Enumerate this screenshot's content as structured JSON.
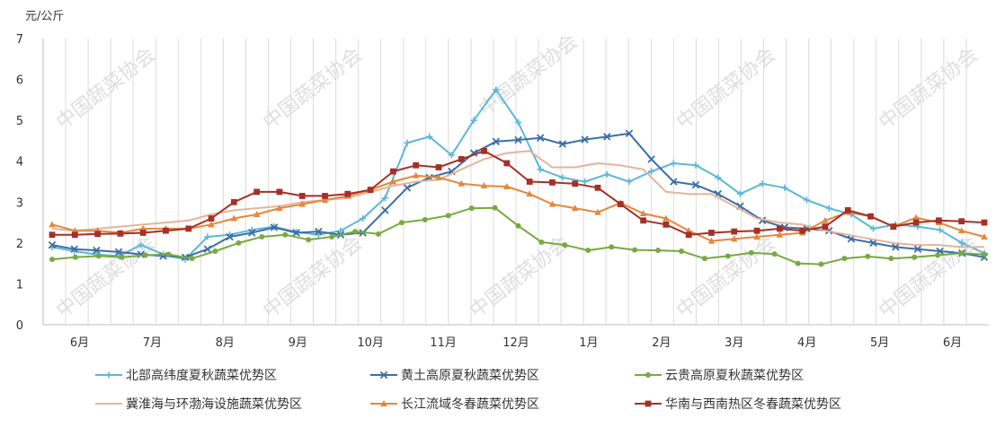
{
  "chart_data": {
    "type": "line",
    "ylabel": "元/公斤",
    "ylim": [
      0,
      7
    ],
    "yticks": [
      0,
      1,
      2,
      3,
      4,
      5,
      6,
      7
    ],
    "grid": "vertical",
    "legend_position": "bottom",
    "months": [
      "6月",
      "7月",
      "8月",
      "9月",
      "10月",
      "11月",
      "12月",
      "1月",
      "2月",
      "3月",
      "4月",
      "5月",
      "6月"
    ],
    "watermark": "中国蔬菜协会",
    "series": [
      {
        "name": "北部高纬度夏秋蔬菜优势区",
        "color": "#5bb8d8",
        "marker": "plus",
        "values": [
          1.9,
          1.8,
          1.72,
          1.68,
          1.95,
          1.72,
          1.6,
          2.15,
          2.2,
          2.32,
          2.4,
          2.27,
          2.2,
          2.3,
          2.6,
          3.1,
          4.45,
          4.6,
          4.15,
          5.0,
          5.75,
          4.95,
          3.8,
          3.6,
          3.5,
          3.68,
          3.5,
          3.75,
          3.95,
          3.9,
          3.6,
          3.2,
          3.45,
          3.35,
          3.05,
          2.85,
          2.7,
          2.35,
          2.45,
          2.4,
          2.32,
          2.0,
          1.75
        ]
      },
      {
        "name": "黄土高原夏秋蔬菜优势区",
        "color": "#3c6fa5",
        "marker": "x",
        "values": [
          1.95,
          1.85,
          1.82,
          1.78,
          1.72,
          1.68,
          1.65,
          1.85,
          2.15,
          2.25,
          2.38,
          2.25,
          2.28,
          2.2,
          2.25,
          2.8,
          3.35,
          3.6,
          3.75,
          4.2,
          4.48,
          4.52,
          4.57,
          4.42,
          4.53,
          4.6,
          4.68,
          4.05,
          3.5,
          3.42,
          3.2,
          2.9,
          2.55,
          2.38,
          2.35,
          2.3,
          2.1,
          2.0,
          1.9,
          1.85,
          1.8,
          1.75,
          1.65
        ]
      },
      {
        "name": "云贵高原夏秋蔬菜优势区",
        "color": "#77aa40",
        "marker": "circle",
        "values": [
          1.6,
          1.65,
          1.68,
          1.65,
          1.7,
          1.72,
          1.62,
          1.8,
          2.0,
          2.15,
          2.2,
          2.08,
          2.15,
          2.28,
          2.22,
          2.5,
          2.57,
          2.67,
          2.85,
          2.86,
          2.42,
          2.02,
          1.95,
          1.82,
          1.9,
          1.83,
          1.82,
          1.8,
          1.62,
          1.68,
          1.76,
          1.73,
          1.5,
          1.48,
          1.62,
          1.67,
          1.62,
          1.65,
          1.7,
          1.75,
          1.72
        ]
      },
      {
        "name": "冀淮海与环渤海设施蔬菜优势区",
        "color": "#e6b49a",
        "marker": "none",
        "values": [
          2.35,
          2.3,
          2.35,
          2.4,
          2.45,
          2.5,
          2.55,
          2.7,
          2.8,
          2.85,
          2.9,
          3.0,
          3.05,
          3.1,
          3.25,
          3.4,
          3.5,
          3.55,
          3.8,
          4.05,
          4.2,
          4.25,
          3.85,
          3.85,
          3.95,
          3.9,
          3.8,
          3.25,
          3.2,
          3.2,
          2.9,
          2.6,
          2.5,
          2.45,
          2.3,
          2.2,
          2.1,
          2.0,
          1.95,
          1.95,
          1.9,
          1.9
        ]
      },
      {
        "name": "长江流域冬春蔬菜优势区",
        "color": "#e3883d",
        "marker": "triangle",
        "values": [
          2.45,
          2.3,
          2.3,
          2.25,
          2.35,
          2.35,
          2.35,
          2.45,
          2.6,
          2.7,
          2.85,
          2.95,
          3.05,
          3.15,
          3.3,
          3.5,
          3.65,
          3.6,
          3.45,
          3.4,
          3.38,
          3.2,
          2.95,
          2.85,
          2.75,
          2.98,
          2.72,
          2.6,
          2.3,
          2.05,
          2.1,
          2.15,
          2.2,
          2.25,
          2.55,
          2.75,
          2.65,
          2.4,
          2.62,
          2.5,
          2.3,
          2.15
        ]
      },
      {
        "name": "华南与西南热区冬春蔬菜优势区",
        "color": "#a53027",
        "marker": "square",
        "values": [
          2.2,
          2.2,
          2.22,
          2.23,
          2.25,
          2.3,
          2.35,
          2.6,
          3.0,
          3.25,
          3.25,
          3.15,
          3.15,
          3.2,
          3.3,
          3.75,
          3.9,
          3.85,
          4.05,
          4.25,
          3.95,
          3.5,
          3.48,
          3.45,
          3.35,
          2.95,
          2.55,
          2.45,
          2.2,
          2.25,
          2.28,
          2.3,
          2.35,
          2.3,
          2.4,
          2.8,
          2.65,
          2.4,
          2.5,
          2.55,
          2.53,
          2.5
        ]
      }
    ]
  }
}
